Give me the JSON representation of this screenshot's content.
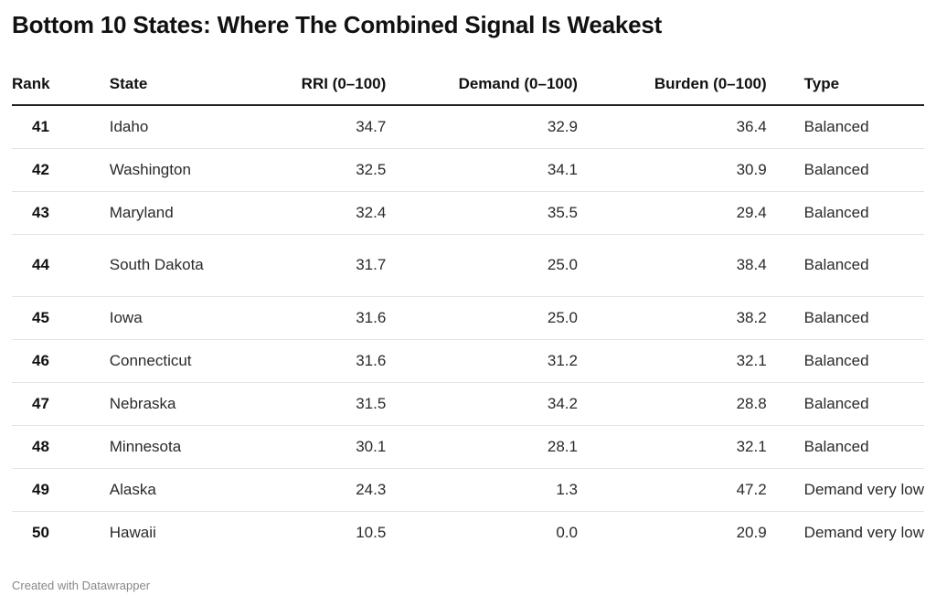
{
  "chart_data": {
    "type": "table",
    "title": "Bottom 10 States: Where The Combined Signal Is Weakest",
    "columns": [
      "Rank",
      "State",
      "RRI (0–100)",
      "Demand (0–100)",
      "Burden (0–100)",
      "Type"
    ],
    "rows": [
      {
        "rank": "41",
        "state": "Idaho",
        "rri": "34.7",
        "demand": "32.9",
        "burden": "36.4",
        "type": "Balanced"
      },
      {
        "rank": "42",
        "state": "Washington",
        "rri": "32.5",
        "demand": "34.1",
        "burden": "30.9",
        "type": "Balanced"
      },
      {
        "rank": "43",
        "state": "Maryland",
        "rri": "32.4",
        "demand": "35.5",
        "burden": "29.4",
        "type": "Balanced"
      },
      {
        "rank": "44",
        "state": "South Dakota",
        "rri": "31.7",
        "demand": "25.0",
        "burden": "38.4",
        "type": "Balanced"
      },
      {
        "rank": "45",
        "state": "Iowa",
        "rri": "31.6",
        "demand": "25.0",
        "burden": "38.2",
        "type": "Balanced"
      },
      {
        "rank": "46",
        "state": "Connecticut",
        "rri": "31.6",
        "demand": "31.2",
        "burden": "32.1",
        "type": "Balanced"
      },
      {
        "rank": "47",
        "state": "Nebraska",
        "rri": "31.5",
        "demand": "34.2",
        "burden": "28.8",
        "type": "Balanced"
      },
      {
        "rank": "48",
        "state": "Minnesota",
        "rri": "30.1",
        "demand": "28.1",
        "burden": "32.1",
        "type": "Balanced"
      },
      {
        "rank": "49",
        "state": "Alaska",
        "rri": "24.3",
        "demand": "1.3",
        "burden": "47.2",
        "type": "Demand very low"
      },
      {
        "rank": "50",
        "state": "Hawaii",
        "rri": "10.5",
        "demand": "0.0",
        "burden": "20.9",
        "type": "Demand very low"
      }
    ]
  },
  "footer": "Created with Datawrapper"
}
